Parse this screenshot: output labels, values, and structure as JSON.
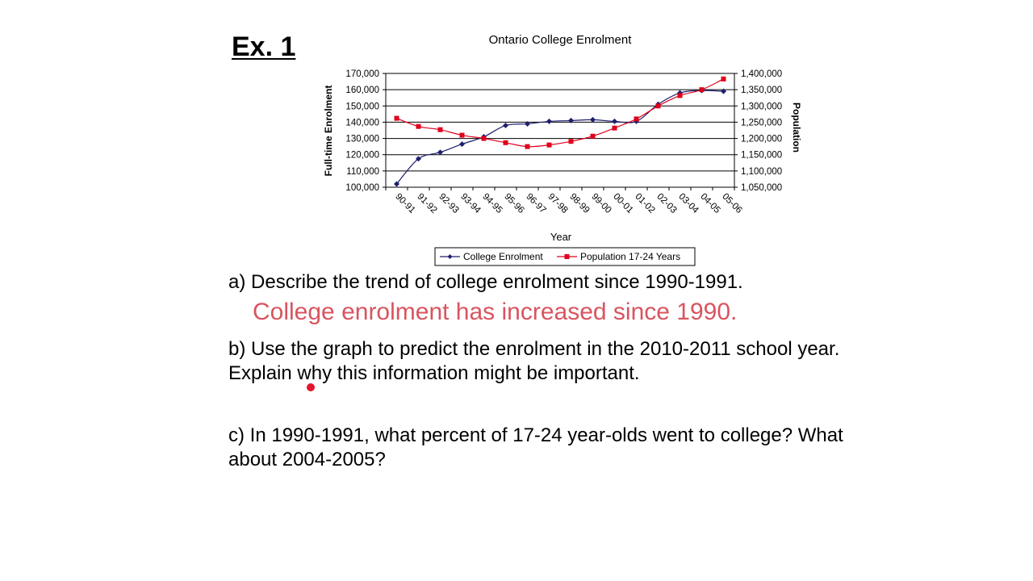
{
  "exercise_label": "Ex. 1",
  "questions": {
    "a": "a) Describe the trend of college enrolment since 1990-1991.",
    "a_answer": "College enrolment has increased since 1990.",
    "b": "b) Use the graph to predict the enrolment in the 2010-2011 school year. Explain why this information might be important.",
    "c": "c) In 1990-1991, what percent of 17-24 year-olds went to college? What about 2004-2005?"
  },
  "colors": {
    "enrolment": "#1f1f6e",
    "population": "#e0001b",
    "answer": "#d9545f",
    "pointer": "#e3142c"
  },
  "chart_data": {
    "type": "line",
    "title": "Ontario College Enrolment",
    "xlabel": "Year",
    "ylabel": "Full-time Enrolment",
    "y2label": "Population",
    "categories": [
      "90-91",
      "91-92",
      "92-93",
      "93-94",
      "94-95",
      "95-96",
      "96-97",
      "97-98",
      "98-99",
      "99-00",
      "00-01",
      "01-02",
      "02-03",
      "03-04",
      "04-05",
      "05-06"
    ],
    "ylim": [
      100000,
      170000
    ],
    "y_ticks": [
      "100,000",
      "110,000",
      "120,000",
      "130,000",
      "140,000",
      "150,000",
      "160,000",
      "170,000"
    ],
    "y2lim": [
      1050000,
      1400000
    ],
    "y2_ticks": [
      "1,050,000",
      "1,100,000",
      "1,150,000",
      "1,200,000",
      "1,250,000",
      "1,300,000",
      "1,350,000",
      "1,400,000"
    ],
    "gridlines": true,
    "legend_position": "bottom",
    "series": [
      {
        "name": "College Enrolment",
        "axis": "left",
        "marker": "diamond",
        "values": [
          102000,
          117500,
          121500,
          126500,
          131000,
          138000,
          139000,
          140500,
          141000,
          141500,
          140500,
          140500,
          151000,
          158000,
          159500,
          159000
        ]
      },
      {
        "name": "Population 17-24 Years",
        "axis": "right",
        "marker": "square",
        "values": [
          1262000,
          1237000,
          1227000,
          1210000,
          1200000,
          1187000,
          1175000,
          1180000,
          1191000,
          1207000,
          1232000,
          1260000,
          1300000,
          1332000,
          1350000,
          1383000
        ]
      }
    ]
  }
}
